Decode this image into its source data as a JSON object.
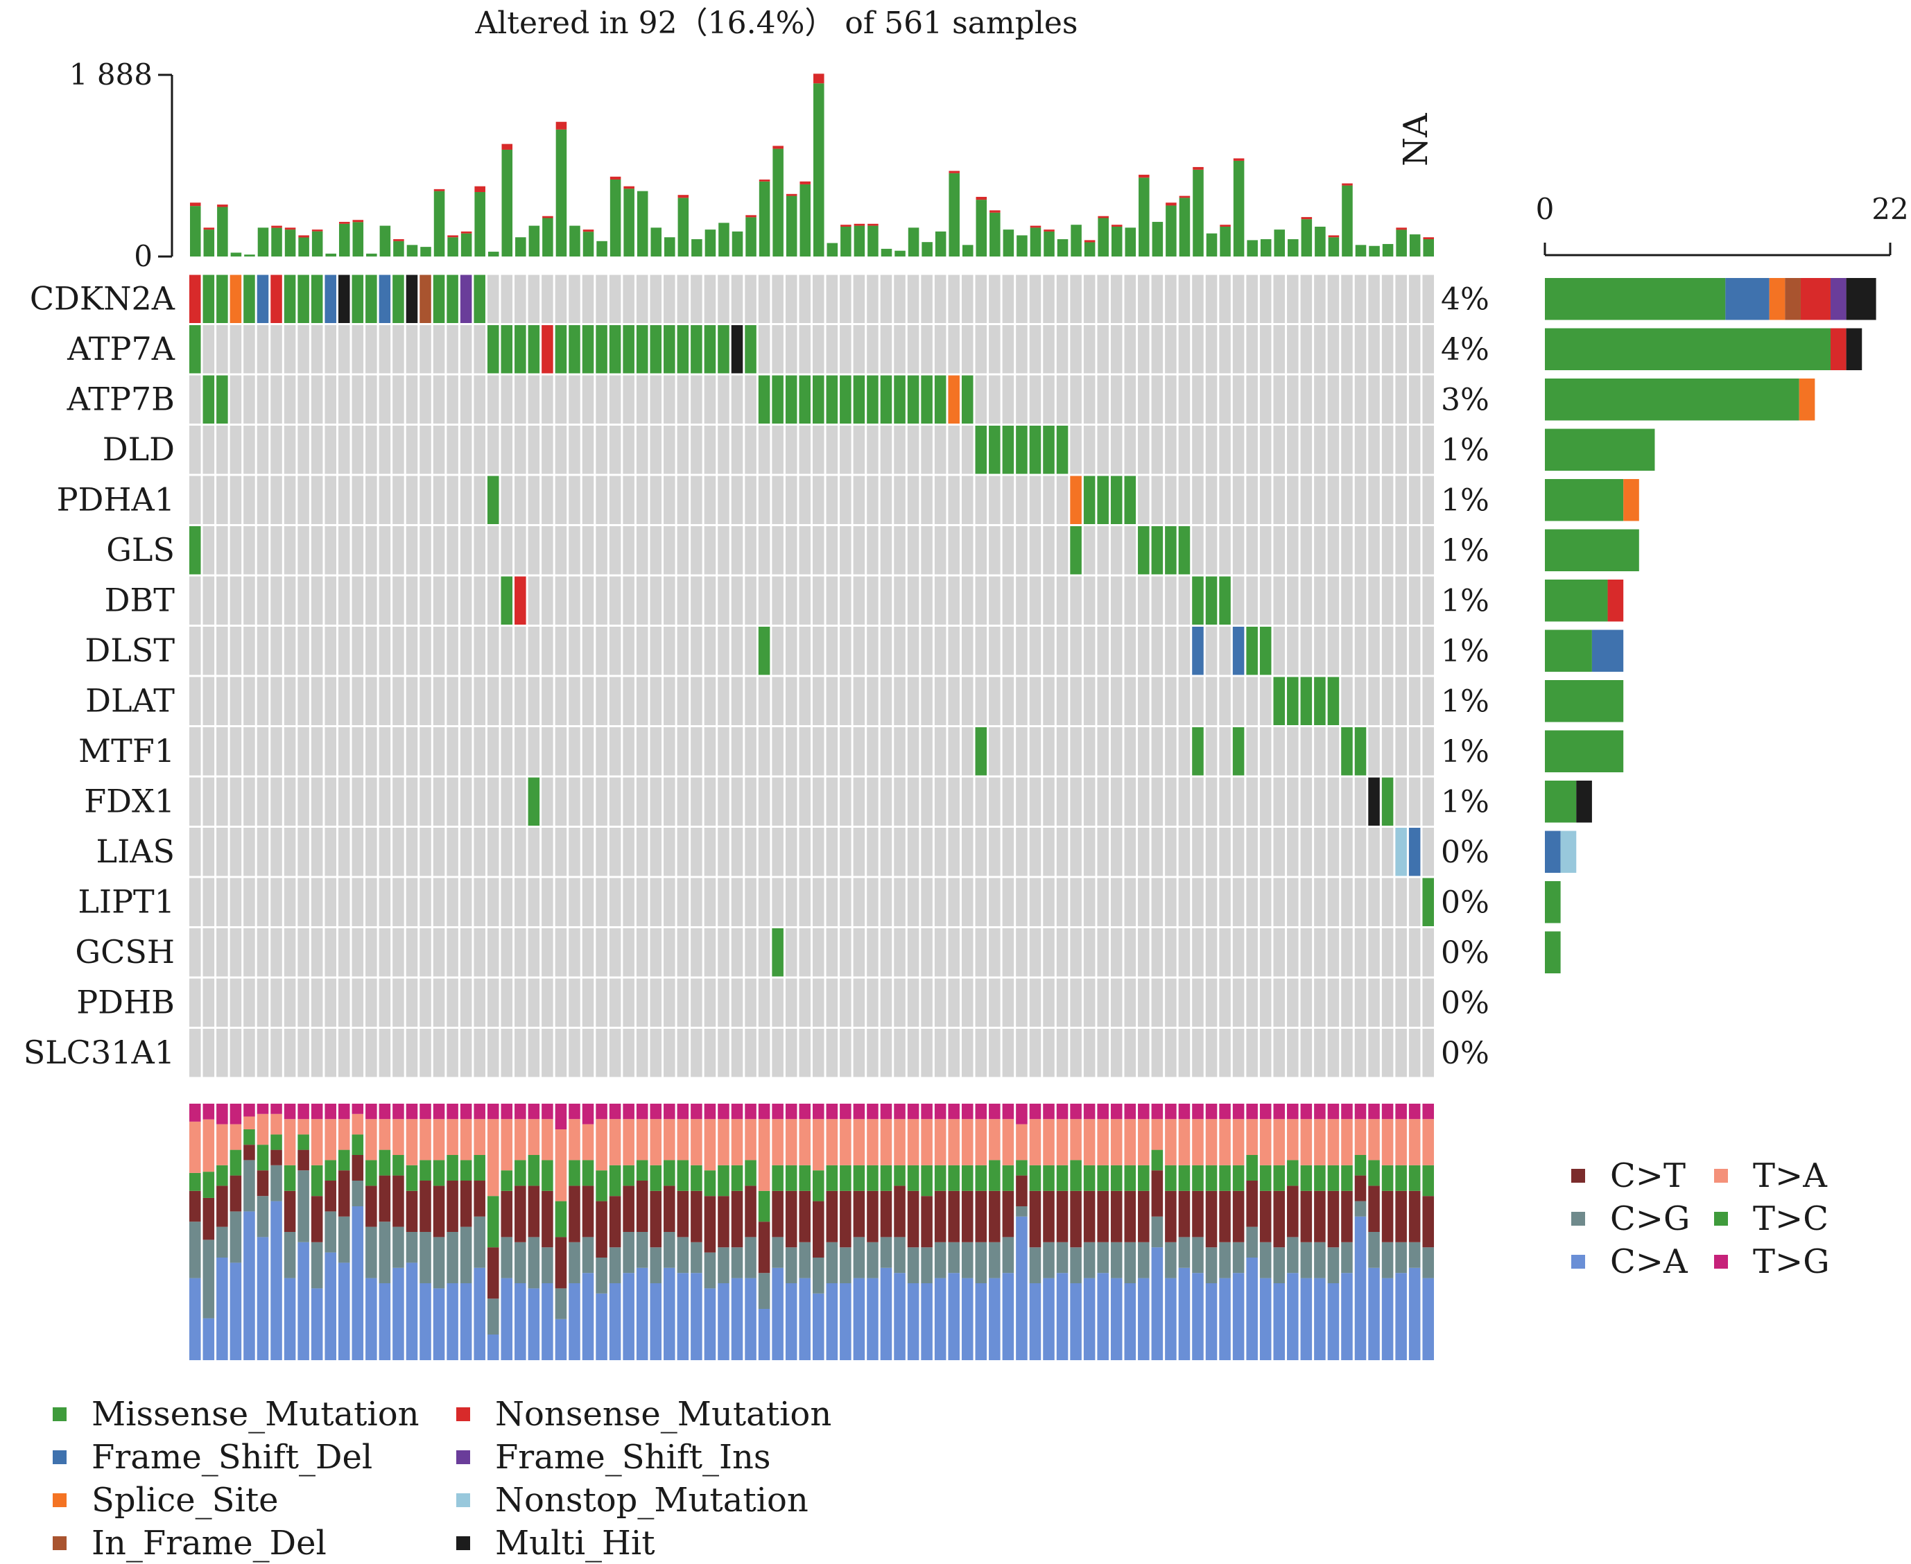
{
  "chart_data": {
    "type": "oncoplot",
    "title": "Altered in 92（16.4%） of 561 samples",
    "na_label": "NA",
    "tmb_axis": {
      "min": 0,
      "max": 1888,
      "tick_labels": [
        "1 888",
        "0"
      ]
    },
    "gene_bar_axis": {
      "min": 0,
      "max": 22,
      "tick_labels": [
        "0",
        "22"
      ]
    },
    "n_samples": 92,
    "colors": {
      "Missense_Mutation": "#3f9b3c",
      "Nonsense_Mutation": "#d82a2a",
      "Frame_Shift_Del": "#3f72ae",
      "Frame_Shift_Ins": "#6a3d9a",
      "Splice_Site": "#f47323",
      "Nonstop_Mutation": "#98c8dc",
      "In_Frame_Del": "#a9542f",
      "Multi_Hit": "#1c1c1c",
      "empty": "#d3d3d3",
      "C>T": "#7b2c2c",
      "C>G": "#6f8a8c",
      "C>A": "#6a8fd6",
      "T>A": "#f4917a",
      "T>C": "#3f9b3c",
      "T>G": "#c6227a"
    },
    "variant_legend": [
      {
        "name": "Missense_Mutation",
        "color": "#3f9b3c"
      },
      {
        "name": "Frame_Shift_Del",
        "color": "#3f72ae"
      },
      {
        "name": "Splice_Site",
        "color": "#f47323"
      },
      {
        "name": "In_Frame_Del",
        "color": "#a9542f"
      },
      {
        "name": "Nonsense_Mutation",
        "color": "#d82a2a"
      },
      {
        "name": "Frame_Shift_Ins",
        "color": "#6a3d9a"
      },
      {
        "name": "Nonstop_Mutation",
        "color": "#98c8dc"
      },
      {
        "name": "Multi_Hit",
        "color": "#1c1c1c"
      }
    ],
    "titv_legend": [
      {
        "name": "C>T",
        "color": "#7b2c2c"
      },
      {
        "name": "C>G",
        "color": "#6f8a8c"
      },
      {
        "name": "C>A",
        "color": "#6a8fd6"
      },
      {
        "name": "T>A",
        "color": "#f4917a"
      },
      {
        "name": "T>C",
        "color": "#3f9b3c"
      },
      {
        "name": "T>G",
        "color": "#c6227a"
      }
    ],
    "genes": [
      {
        "name": "CDKN2A",
        "pct": "4%",
        "bar": [
          [
            "Missense_Mutation",
            11.5
          ],
          [
            "Frame_Shift_Del",
            2.8
          ],
          [
            "Splice_Site",
            1
          ],
          [
            "In_Frame_Del",
            1
          ],
          [
            "Nonsense_Mutation",
            1.9
          ],
          [
            "Frame_Shift_Ins",
            1
          ],
          [
            "Multi_Hit",
            1.9
          ]
        ],
        "cells": {
          "0": "Nonsense_Mutation",
          "1": "Missense_Mutation",
          "2": "Missense_Mutation",
          "3": "Splice_Site",
          "4": "Missense_Mutation",
          "5": "Frame_Shift_Del",
          "6": "Nonsense_Mutation",
          "7": "Missense_Mutation",
          "8": "Missense_Mutation",
          "9": "Missense_Mutation",
          "10": "Frame_Shift_Del",
          "11": "Multi_Hit",
          "12": "Missense_Mutation",
          "13": "Missense_Mutation",
          "14": "Frame_Shift_Del",
          "15": "Missense_Mutation",
          "16": "Multi_Hit",
          "17": "In_Frame_Del",
          "18": "Missense_Mutation",
          "19": "Missense_Mutation",
          "20": "Frame_Shift_Ins",
          "21": "Missense_Mutation"
        }
      },
      {
        "name": "ATP7A",
        "pct": "4%",
        "bar": [
          [
            "Missense_Mutation",
            18.2
          ],
          [
            "Nonsense_Mutation",
            1
          ],
          [
            "Multi_Hit",
            1
          ]
        ],
        "cells": {
          "0": "Missense_Mutation",
          "22": "Missense_Mutation",
          "23": "Missense_Mutation",
          "24": "Missense_Mutation",
          "25": "Missense_Mutation",
          "26": "Nonsense_Mutation",
          "27": "Missense_Mutation",
          "28": "Missense_Mutation",
          "29": "Missense_Mutation",
          "30": "Missense_Mutation",
          "31": "Missense_Mutation",
          "32": "Missense_Mutation",
          "33": "Missense_Mutation",
          "34": "Missense_Mutation",
          "35": "Missense_Mutation",
          "36": "Missense_Mutation",
          "37": "Missense_Mutation",
          "38": "Missense_Mutation",
          "39": "Missense_Mutation",
          "40": "Multi_Hit",
          "41": "Missense_Mutation"
        }
      },
      {
        "name": "ATP7B",
        "pct": "3%",
        "bar": [
          [
            "Missense_Mutation",
            16.2
          ],
          [
            "Splice_Site",
            1
          ]
        ],
        "cells": {
          "1": "Missense_Mutation",
          "2": "Missense_Mutation",
          "42": "Missense_Mutation",
          "43": "Missense_Mutation",
          "44": "Missense_Mutation",
          "45": "Missense_Mutation",
          "46": "Missense_Mutation",
          "47": "Missense_Mutation",
          "48": "Missense_Mutation",
          "49": "Missense_Mutation",
          "50": "Missense_Mutation",
          "51": "Missense_Mutation",
          "52": "Missense_Mutation",
          "53": "Missense_Mutation",
          "54": "Missense_Mutation",
          "55": "Missense_Mutation",
          "56": "Splice_Site",
          "57": "Missense_Mutation"
        }
      },
      {
        "name": "DLD",
        "pct": "1%",
        "bar": [
          [
            "Missense_Mutation",
            7
          ]
        ],
        "cells": {
          "58": "Missense_Mutation",
          "59": "Missense_Mutation",
          "60": "Missense_Mutation",
          "61": "Missense_Mutation",
          "62": "Missense_Mutation",
          "63": "Missense_Mutation",
          "64": "Missense_Mutation"
        }
      },
      {
        "name": "PDHA1",
        "pct": "1%",
        "bar": [
          [
            "Missense_Mutation",
            5
          ],
          [
            "Splice_Site",
            1
          ]
        ],
        "cells": {
          "22": "Missense_Mutation",
          "65": "Splice_Site",
          "66": "Missense_Mutation",
          "67": "Missense_Mutation",
          "68": "Missense_Mutation",
          "69": "Missense_Mutation"
        }
      },
      {
        "name": "GLS",
        "pct": "1%",
        "bar": [
          [
            "Missense_Mutation",
            6
          ]
        ],
        "cells": {
          "0": "Missense_Mutation",
          "65": "Missense_Mutation",
          "70": "Missense_Mutation",
          "71": "Missense_Mutation",
          "72": "Missense_Mutation",
          "73": "Missense_Mutation"
        }
      },
      {
        "name": "DBT",
        "pct": "1%",
        "bar": [
          [
            "Missense_Mutation",
            4
          ],
          [
            "Nonsense_Mutation",
            1
          ]
        ],
        "cells": {
          "23": "Missense_Mutation",
          "24": "Nonsense_Mutation",
          "74": "Missense_Mutation",
          "75": "Missense_Mutation",
          "76": "Missense_Mutation"
        }
      },
      {
        "name": "DLST",
        "pct": "1%",
        "bar": [
          [
            "Missense_Mutation",
            3
          ],
          [
            "Frame_Shift_Del",
            2
          ]
        ],
        "cells": {
          "42": "Missense_Mutation",
          "74": "Frame_Shift_Del",
          "77": "Frame_Shift_Del",
          "78": "Missense_Mutation",
          "79": "Missense_Mutation"
        }
      },
      {
        "name": "DLAT",
        "pct": "1%",
        "bar": [
          [
            "Missense_Mutation",
            5
          ]
        ],
        "cells": {
          "80": "Missense_Mutation",
          "81": "Missense_Mutation",
          "82": "Missense_Mutation",
          "83": "Missense_Mutation",
          "84": "Missense_Mutation"
        }
      },
      {
        "name": "MTF1",
        "pct": "1%",
        "bar": [
          [
            "Missense_Mutation",
            5
          ]
        ],
        "cells": {
          "58": "Missense_Mutation",
          "74": "Missense_Mutation",
          "77": "Missense_Mutation",
          "85": "Missense_Mutation",
          "86": "Missense_Mutation"
        }
      },
      {
        "name": "FDX1",
        "pct": "1%",
        "bar": [
          [
            "Missense_Mutation",
            2
          ],
          [
            "Multi_Hit",
            1
          ]
        ],
        "cells": {
          "25": "Missense_Mutation",
          "87": "Multi_Hit",
          "88": "Missense_Mutation"
        }
      },
      {
        "name": "LIAS",
        "pct": "0%",
        "bar": [
          [
            "Frame_Shift_Del",
            1
          ],
          [
            "Nonstop_Mutation",
            1
          ]
        ],
        "cells": {
          "89": "Nonstop_Mutation",
          "90": "Frame_Shift_Del"
        }
      },
      {
        "name": "LIPT1",
        "pct": "0%",
        "bar": [
          [
            "Missense_Mutation",
            1
          ]
        ],
        "cells": {
          "91": "Missense_Mutation"
        }
      },
      {
        "name": "GCSH",
        "pct": "0%",
        "bar": [
          [
            "Missense_Mutation",
            1
          ]
        ],
        "cells": {
          "43": "Missense_Mutation"
        }
      },
      {
        "name": "PDHB",
        "pct": "0%",
        "bar": [],
        "cells": {}
      },
      {
        "name": "SLC31A1",
        "pct": "0%",
        "bar": [],
        "cells": {}
      }
    ],
    "tmb_totals": [
      560,
      300,
      540,
      40,
      20,
      300,
      320,
      300,
      220,
      280,
      30,
      360,
      380,
      30,
      320,
      180,
      120,
      100,
      700,
      220,
      260,
      730,
      50,
      1170,
      200,
      320,
      420,
      1400,
      320,
      280,
      160,
      830,
      730,
      680,
      300,
      200,
      640,
      180,
      280,
      350,
      260,
      430,
      800,
      1150,
      650,
      780,
      1900,
      140,
      330,
      340,
      340,
      80,
      60,
      300,
      150,
      260,
      890,
      120,
      620,
      480,
      280,
      220,
      320,
      280,
      180,
      330,
      170,
      420,
      330,
      300,
      850,
      360,
      560,
      630,
      930,
      240,
      330,
      1020,
      170,
      180,
      280,
      180,
      410,
      310,
      220,
      760,
      120,
      110,
      130,
      300,
      230,
      200
    ],
    "tmb_extra": [
      35,
      20,
      25,
      0,
      0,
      0,
      22,
      20,
      22,
      18,
      0,
      20,
      22,
      0,
      0,
      20,
      0,
      0,
      20,
      20,
      20,
      60,
      0,
      60,
      0,
      0,
      20,
      80,
      0,
      22,
      0,
      30,
      25,
      0,
      0,
      0,
      30,
      0,
      0,
      0,
      0,
      22,
      20,
      30,
      20,
      30,
      100,
      0,
      20,
      20,
      20,
      0,
      0,
      0,
      0,
      0,
      24,
      0,
      30,
      24,
      0,
      0,
      20,
      20,
      0,
      0,
      22,
      20,
      20,
      0,
      30,
      0,
      30,
      20,
      28,
      0,
      20,
      25,
      0,
      0,
      0,
      0,
      22,
      0,
      20,
      22,
      0,
      0,
      0,
      22,
      0,
      20
    ],
    "titv": [
      [
        32,
        22,
        12,
        7,
        20,
        7
      ],
      [
        16,
        30,
        16,
        10,
        20,
        6
      ],
      [
        40,
        12,
        16,
        8,
        16,
        8
      ],
      [
        38,
        20,
        14,
        10,
        10,
        8
      ],
      [
        58,
        20,
        6,
        6,
        5,
        5
      ],
      [
        48,
        16,
        10,
        10,
        12,
        4
      ],
      [
        62,
        14,
        6,
        6,
        8,
        4
      ],
      [
        32,
        18,
        16,
        10,
        18,
        6
      ],
      [
        46,
        28,
        8,
        6,
        6,
        6
      ],
      [
        28,
        18,
        18,
        12,
        18,
        6
      ],
      [
        42,
        16,
        12,
        8,
        16,
        6
      ],
      [
        38,
        18,
        18,
        8,
        12,
        6
      ],
      [
        60,
        10,
        10,
        8,
        8,
        4
      ],
      [
        32,
        20,
        16,
        10,
        16,
        6
      ],
      [
        30,
        24,
        18,
        10,
        12,
        6
      ],
      [
        36,
        16,
        20,
        8,
        14,
        6
      ],
      [
        38,
        12,
        16,
        10,
        18,
        6
      ],
      [
        30,
        20,
        20,
        8,
        16,
        6
      ],
      [
        28,
        20,
        20,
        10,
        16,
        6
      ],
      [
        30,
        20,
        20,
        10,
        14,
        6
      ],
      [
        30,
        22,
        18,
        8,
        16,
        6
      ],
      [
        36,
        20,
        14,
        10,
        14,
        6
      ],
      [
        10,
        14,
        20,
        20,
        30,
        6
      ],
      [
        32,
        16,
        18,
        8,
        20,
        6
      ],
      [
        30,
        16,
        22,
        10,
        16,
        6
      ],
      [
        28,
        20,
        20,
        12,
        14,
        6
      ],
      [
        30,
        14,
        22,
        12,
        16,
        6
      ],
      [
        16,
        12,
        20,
        14,
        28,
        10
      ],
      [
        30,
        16,
        22,
        10,
        16,
        6
      ],
      [
        34,
        14,
        20,
        10,
        14,
        8
      ],
      [
        26,
        14,
        22,
        12,
        20,
        6
      ],
      [
        30,
        14,
        20,
        12,
        18,
        6
      ],
      [
        34,
        16,
        18,
        8,
        18,
        6
      ],
      [
        36,
        14,
        20,
        8,
        16,
        6
      ],
      [
        30,
        14,
        22,
        10,
        18,
        6
      ],
      [
        36,
        14,
        18,
        10,
        16,
        6
      ],
      [
        34,
        14,
        18,
        12,
        16,
        6
      ],
      [
        34,
        12,
        20,
        10,
        18,
        6
      ],
      [
        28,
        14,
        22,
        10,
        20,
        6
      ],
      [
        30,
        14,
        20,
        12,
        18,
        6
      ],
      [
        32,
        12,
        22,
        10,
        18,
        6
      ],
      [
        32,
        16,
        20,
        10,
        16,
        6
      ],
      [
        20,
        14,
        20,
        12,
        28,
        6
      ],
      [
        36,
        12,
        18,
        10,
        18,
        6
      ],
      [
        30,
        14,
        22,
        10,
        18,
        6
      ],
      [
        32,
        14,
        20,
        10,
        18,
        6
      ],
      [
        26,
        14,
        22,
        12,
        20,
        6
      ],
      [
        30,
        16,
        20,
        10,
        18,
        6
      ],
      [
        30,
        14,
        22,
        10,
        18,
        6
      ],
      [
        32,
        16,
        18,
        10,
        18,
        6
      ],
      [
        32,
        14,
        20,
        10,
        18,
        6
      ],
      [
        36,
        12,
        18,
        10,
        18,
        6
      ],
      [
        34,
        14,
        20,
        8,
        18,
        6
      ],
      [
        30,
        14,
        22,
        10,
        18,
        6
      ],
      [
        30,
        14,
        20,
        12,
        18,
        6
      ],
      [
        32,
        14,
        20,
        10,
        18,
        6
      ],
      [
        34,
        12,
        20,
        10,
        18,
        6
      ],
      [
        32,
        14,
        20,
        10,
        18,
        6
      ],
      [
        30,
        16,
        20,
        10,
        18,
        6
      ],
      [
        32,
        14,
        20,
        12,
        16,
        6
      ],
      [
        34,
        14,
        18,
        10,
        18,
        6
      ],
      [
        56,
        4,
        12,
        6,
        14,
        8
      ],
      [
        30,
        14,
        22,
        10,
        18,
        6
      ],
      [
        32,
        14,
        20,
        10,
        18,
        6
      ],
      [
        34,
        12,
        20,
        10,
        18,
        6
      ],
      [
        30,
        14,
        22,
        12,
        16,
        6
      ],
      [
        32,
        14,
        20,
        10,
        18,
        6
      ],
      [
        34,
        12,
        20,
        10,
        18,
        6
      ],
      [
        32,
        14,
        20,
        10,
        18,
        6
      ],
      [
        30,
        16,
        20,
        10,
        18,
        6
      ],
      [
        32,
        14,
        20,
        10,
        18,
        6
      ],
      [
        44,
        12,
        18,
        8,
        12,
        6
      ],
      [
        32,
        14,
        20,
        10,
        18,
        6
      ],
      [
        36,
        12,
        18,
        10,
        18,
        6
      ],
      [
        34,
        14,
        18,
        10,
        18,
        6
      ],
      [
        30,
        14,
        22,
        10,
        18,
        6
      ],
      [
        32,
        14,
        20,
        10,
        18,
        6
      ],
      [
        34,
        12,
        20,
        10,
        18,
        6
      ],
      [
        40,
        12,
        18,
        10,
        14,
        6
      ],
      [
        32,
        14,
        20,
        10,
        18,
        6
      ],
      [
        30,
        14,
        22,
        10,
        18,
        6
      ],
      [
        34,
        14,
        20,
        10,
        16,
        6
      ],
      [
        32,
        14,
        20,
        10,
        18,
        6
      ],
      [
        32,
        14,
        20,
        10,
        18,
        6
      ],
      [
        30,
        14,
        22,
        10,
        18,
        6
      ],
      [
        34,
        12,
        20,
        10,
        18,
        6
      ],
      [
        56,
        6,
        10,
        8,
        14,
        6
      ],
      [
        36,
        14,
        18,
        10,
        16,
        6
      ],
      [
        32,
        14,
        20,
        10,
        18,
        6
      ],
      [
        34,
        12,
        20,
        10,
        18,
        6
      ],
      [
        36,
        10,
        20,
        10,
        18,
        6
      ],
      [
        32,
        12,
        20,
        12,
        18,
        6
      ]
    ]
  }
}
